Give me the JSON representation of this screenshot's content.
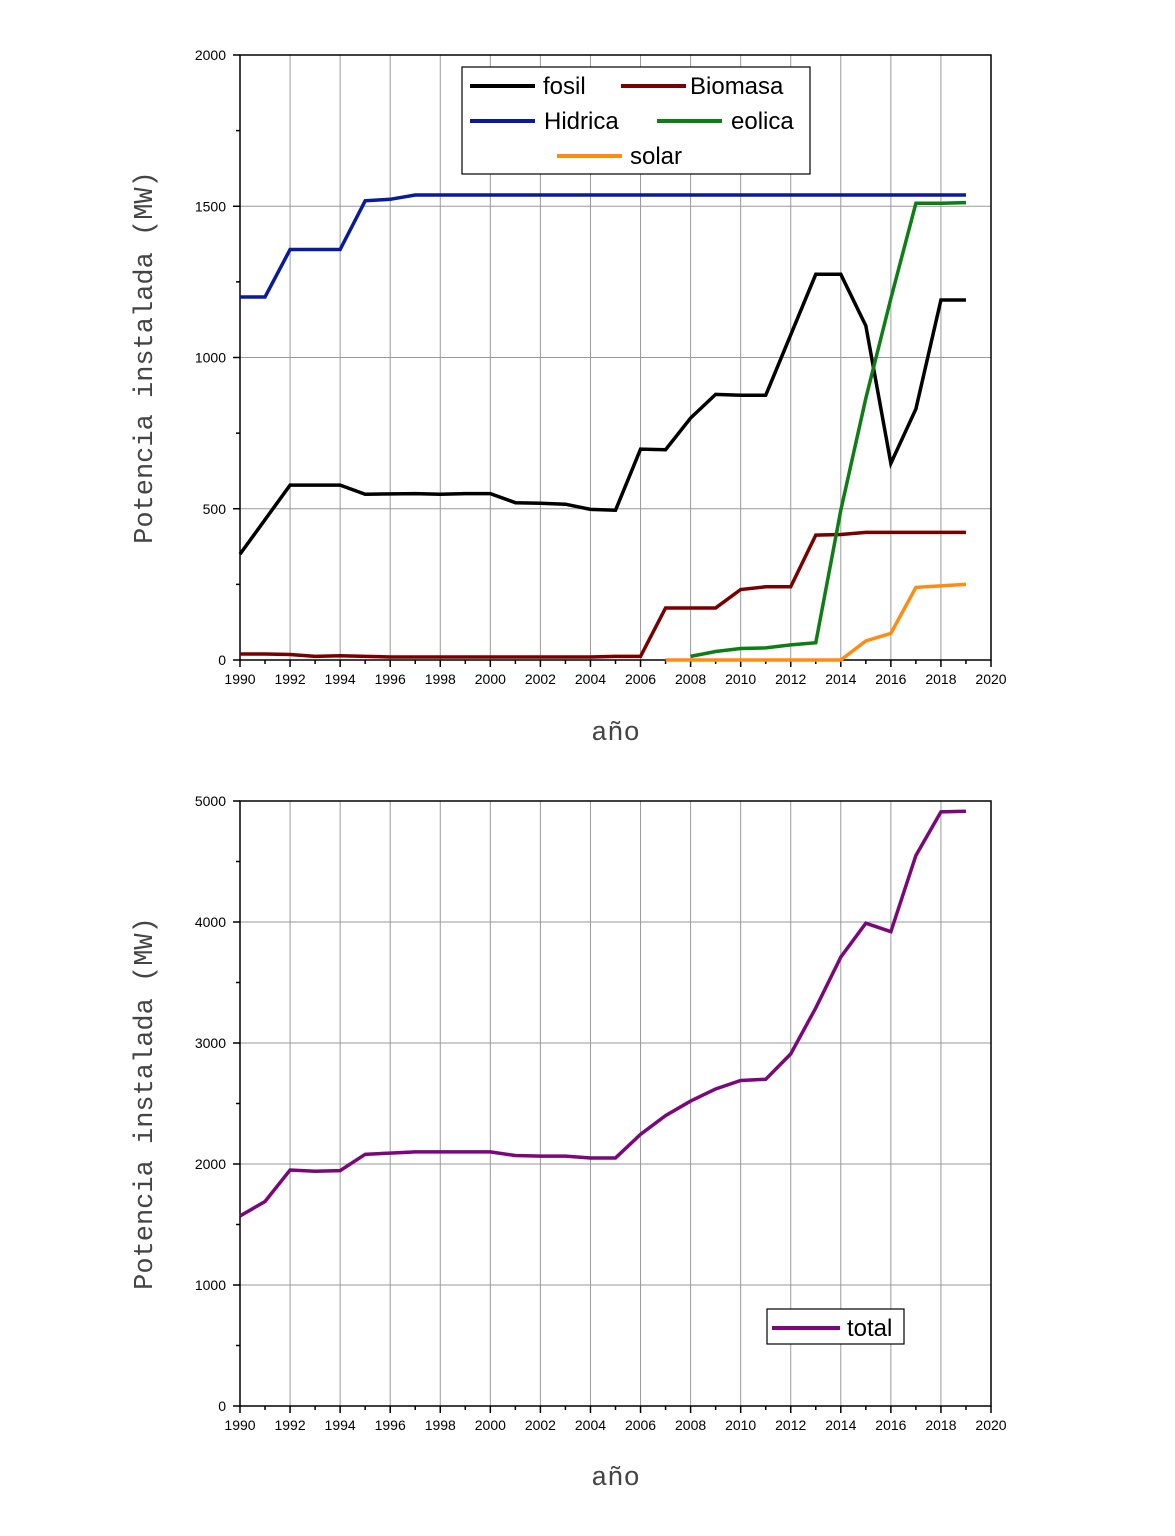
{
  "chart_data": [
    {
      "type": "line",
      "xlabel": "año",
      "ylabel": "Potencia instalada (MW)",
      "xlim": [
        1990,
        2020
      ],
      "ylim": [
        0,
        2000
      ],
      "xticks": [
        "1990",
        "1992",
        "1994",
        "1996",
        "1998",
        "2000",
        "2002",
        "2004",
        "2006",
        "2008",
        "2010",
        "2012",
        "2014",
        "2016",
        "2018",
        "2020"
      ],
      "yticks": [
        "0",
        "500",
        "1000",
        "1500",
        "2000"
      ],
      "grid": true,
      "legend": "top-center",
      "series": [
        {
          "name": "fosil",
          "color": "#000000",
          "points": [
            [
              1990,
              350
            ],
            [
              1992,
              578
            ],
            [
              1994,
              578
            ],
            [
              1995,
              548
            ],
            [
              1997,
              550
            ],
            [
              1998,
              548
            ],
            [
              1999,
              550
            ],
            [
              2000,
              550
            ],
            [
              2001,
              520
            ],
            [
              2002,
              518
            ],
            [
              2003,
              515
            ],
            [
              2004,
              498
            ],
            [
              2005,
              495
            ],
            [
              2006,
              697
            ],
            [
              2007,
              695
            ],
            [
              2008,
              800
            ],
            [
              2009,
              878
            ],
            [
              2010,
              875
            ],
            [
              2011,
              875
            ],
            [
              2013,
              1275
            ],
            [
              2014,
              1275
            ],
            [
              2015,
              1105
            ],
            [
              2016,
              650
            ],
            [
              2017,
              830
            ],
            [
              2018,
              1190
            ],
            [
              2019,
              1190
            ]
          ]
        },
        {
          "name": "Biomasa",
          "color": "#7a0000",
          "points": [
            [
              1990,
              20
            ],
            [
              1991,
              20
            ],
            [
              1992,
              18
            ],
            [
              1993,
              12
            ],
            [
              1994,
              14
            ],
            [
              1995,
              12
            ],
            [
              1996,
              10
            ],
            [
              1997,
              10
            ],
            [
              1998,
              10
            ],
            [
              1999,
              10
            ],
            [
              2000,
              10
            ],
            [
              2001,
              10
            ],
            [
              2002,
              10
            ],
            [
              2003,
              10
            ],
            [
              2004,
              10
            ],
            [
              2005,
              12
            ],
            [
              2006,
              12
            ],
            [
              2007,
              172
            ],
            [
              2008,
              172
            ],
            [
              2009,
              172
            ],
            [
              2010,
              233
            ],
            [
              2011,
              242
            ],
            [
              2012,
              242
            ],
            [
              2013,
              413
            ],
            [
              2014,
              415
            ],
            [
              2015,
              422
            ],
            [
              2016,
              422
            ],
            [
              2017,
              422
            ],
            [
              2018,
              422
            ],
            [
              2019,
              422
            ]
          ]
        },
        {
          "name": "Hidrica",
          "color": "#0a1a9c",
          "points": [
            [
              1990,
              1200
            ],
            [
              1991,
              1200
            ],
            [
              1992,
              1357
            ],
            [
              1993,
              1357
            ],
            [
              1994,
              1357
            ],
            [
              1995,
              1518
            ],
            [
              1996,
              1523
            ],
            [
              1997,
              1537
            ],
            [
              1998,
              1537
            ],
            [
              1999,
              1537
            ],
            [
              2000,
              1537
            ],
            [
              2001,
              1537
            ],
            [
              2002,
              1537
            ],
            [
              2003,
              1537
            ],
            [
              2004,
              1537
            ],
            [
              2005,
              1537
            ],
            [
              2006,
              1537
            ],
            [
              2007,
              1537
            ],
            [
              2008,
              1537
            ],
            [
              2009,
              1537
            ],
            [
              2010,
              1537
            ],
            [
              2011,
              1537
            ],
            [
              2012,
              1537
            ],
            [
              2013,
              1537
            ],
            [
              2014,
              1537
            ],
            [
              2015,
              1537
            ],
            [
              2016,
              1537
            ],
            [
              2017,
              1537
            ],
            [
              2018,
              1537
            ],
            [
              2019,
              1537
            ]
          ]
        },
        {
          "name": "eolica",
          "color": "#0e7e14",
          "points": [
            [
              2008,
              12
            ],
            [
              2009,
              28
            ],
            [
              2010,
              38
            ],
            [
              2011,
              40
            ],
            [
              2012,
              50
            ],
            [
              2013,
              57
            ],
            [
              2014,
              495
            ],
            [
              2015,
              865
            ],
            [
              2016,
              1195
            ],
            [
              2017,
              1510
            ],
            [
              2018,
              1510
            ],
            [
              2019,
              1512
            ]
          ]
        },
        {
          "name": "solar",
          "color": "#ff8c12",
          "points": [
            [
              2007,
              0
            ],
            [
              2008,
              0
            ],
            [
              2009,
              0
            ],
            [
              2010,
              0
            ],
            [
              2011,
              0
            ],
            [
              2012,
              0
            ],
            [
              2013,
              0
            ],
            [
              2014,
              0
            ],
            [
              2015,
              63
            ],
            [
              2016,
              88
            ],
            [
              2017,
              240
            ],
            [
              2018,
              245
            ],
            [
              2019,
              250
            ]
          ]
        }
      ]
    },
    {
      "type": "line",
      "xlabel": "año",
      "ylabel": "Potencia instalada (MW)",
      "xlim": [
        1990,
        2020
      ],
      "ylim": [
        0,
        5000
      ],
      "xticks": [
        "1990",
        "1992",
        "1994",
        "1996",
        "1998",
        "2000",
        "2002",
        "2004",
        "2006",
        "2008",
        "2010",
        "2012",
        "2014",
        "2016",
        "2018",
        "2020"
      ],
      "yticks": [
        "0",
        "1000",
        "2000",
        "3000",
        "4000",
        "5000"
      ],
      "grid": true,
      "legend": "bottom-right",
      "series": [
        {
          "name": "total",
          "color": "#7a087a",
          "points": [
            [
              1990,
              1570
            ],
            [
              1991,
              1690
            ],
            [
              1992,
              1950
            ],
            [
              1993,
              1940
            ],
            [
              1994,
              1945
            ],
            [
              1995,
              2080
            ],
            [
              1996,
              2090
            ],
            [
              1997,
              2100
            ],
            [
              1998,
              2100
            ],
            [
              1999,
              2100
            ],
            [
              2000,
              2100
            ],
            [
              2001,
              2070
            ],
            [
              2002,
              2065
            ],
            [
              2003,
              2065
            ],
            [
              2004,
              2050
            ],
            [
              2005,
              2050
            ],
            [
              2006,
              2245
            ],
            [
              2007,
              2400
            ],
            [
              2008,
              2520
            ],
            [
              2009,
              2620
            ],
            [
              2010,
              2690
            ],
            [
              2011,
              2700
            ],
            [
              2012,
              2910
            ],
            [
              2013,
              3290
            ],
            [
              2014,
              3710
            ],
            [
              2015,
              3990
            ],
            [
              2016,
              3920
            ],
            [
              2017,
              4550
            ],
            [
              2018,
              4910
            ],
            [
              2019,
              4915
            ]
          ]
        }
      ]
    }
  ]
}
